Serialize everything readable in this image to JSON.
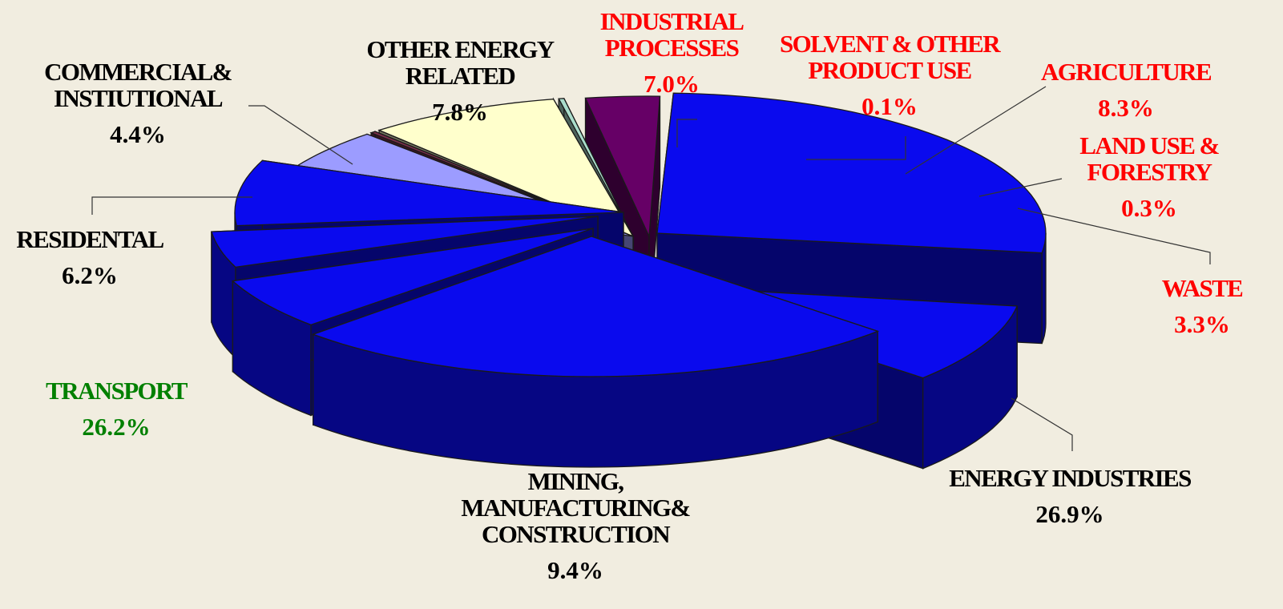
{
  "chart_data": {
    "type": "pie",
    "title": "",
    "style": "exploded 3d pie",
    "series": [
      {
        "label": [
          "ENERGY INDUSTRIES"
        ],
        "value_text": "26.9%",
        "value": 26.9,
        "color": "#0a0aee",
        "label_color": "#000000"
      },
      {
        "label": [
          "MINING,",
          "MANUFACTURING&",
          "CONSTRUCTION"
        ],
        "value_text": "9.4%",
        "value": 9.4,
        "color": "#0a0aee",
        "label_color": "#000000"
      },
      {
        "label": [
          "TRANSPORT"
        ],
        "value_text": "26.2%",
        "value": 26.2,
        "color": "#0a0aee",
        "label_color": "#008000"
      },
      {
        "label": [
          "RESIDENTAL"
        ],
        "value_text": "6.2%",
        "value": 6.2,
        "color": "#0a0aee",
        "label_color": "#000000"
      },
      {
        "label": [
          "COMMERCIAL&",
          "INSTIUTIONAL"
        ],
        "value_text": "4.4%",
        "value": 4.4,
        "color": "#0a0aee",
        "label_color": "#000000"
      },
      {
        "label": [
          "OTHER ENERGY",
          "RELATED"
        ],
        "value_text": "7.8%",
        "value": 7.8,
        "color": "#0a0aee",
        "label_color": "#000000"
      },
      {
        "label": [
          "INDUSTRIAL",
          "PROCESSES"
        ],
        "value_text": "7.0%",
        "value": 7.0,
        "color": "#9c9cff",
        "label_color": "#ff0000"
      },
      {
        "label": [
          "SOLVENT & OTHER",
          "PRODUCT USE"
        ],
        "value_text": "0.1%",
        "value": 0.1,
        "color": "#7a2e4a",
        "label_color": "#ff0000"
      },
      {
        "label": [
          "AGRICULTURE"
        ],
        "value_text": "8.3%",
        "value": 8.3,
        "color": "#ffffcc",
        "label_color": "#ff0000"
      },
      {
        "label": [
          "LAND USE &",
          "FORESTRY"
        ],
        "value_text": "0.3%",
        "value": 0.3,
        "color": "#aaddcc",
        "label_color": "#ff0000"
      },
      {
        "label": [
          "WASTE"
        ],
        "value_text": "3.3%",
        "value": 3.3,
        "color": "#660066",
        "label_color": "#ff0000"
      }
    ],
    "legend": "none"
  }
}
